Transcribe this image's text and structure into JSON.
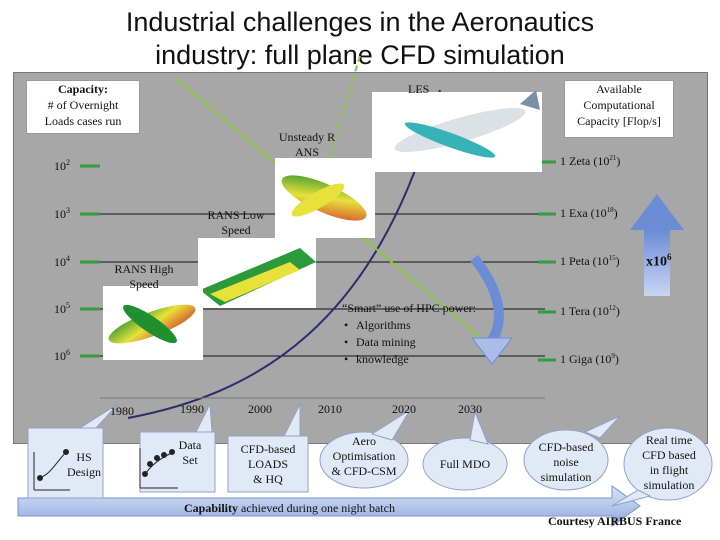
{
  "title_line1": "Industrial challenges in the Aeronautics",
  "title_line2": "industry: full plane CFD simulation",
  "capacity_box": {
    "line1": "Capacity:",
    "line2": "# of Overnight",
    "line3": "Loads cases run"
  },
  "available_box": {
    "line1": "Available",
    "line2": "Computational",
    "line3": "Capacity [Flop/s]"
  },
  "left_axis": [
    {
      "base": "10",
      "exp": "2"
    },
    {
      "base": "10",
      "exp": "3"
    },
    {
      "base": "10",
      "exp": "4"
    },
    {
      "base": "10",
      "exp": "5"
    },
    {
      "base": "10",
      "exp": "6"
    }
  ],
  "right_axis": [
    {
      "label": "1 Zeta  (10",
      "exp": "21",
      "close": ")"
    },
    {
      "label": "1 Exa (10",
      "exp": "18",
      "close": ")"
    },
    {
      "label": "1 Peta (10",
      "exp": "15",
      "close": ")"
    },
    {
      "label": "1 Tera (10",
      "exp": "12",
      "close": ")"
    },
    {
      "label": "1 Giga (10",
      "exp": "9",
      "close": ")"
    }
  ],
  "multiplier": "x10",
  "multiplier_exp": "6",
  "regimes": {
    "les": "LES",
    "unsteady_line1": "Unsteady R",
    "unsteady_line2": "ANS",
    "rans_low_line1": "RANS Low",
    "rans_low_line2": "Speed",
    "rans_high_line1": "RANS High",
    "rans_high_line2": "Speed"
  },
  "hpc": {
    "heading": "“Smart” use of HPC power:",
    "items": [
      "Algorithms",
      "Data mining",
      "knowledge"
    ]
  },
  "years": [
    "1980",
    "1990",
    "2000",
    "2010",
    "2020",
    "2030"
  ],
  "bubbles": {
    "hs_line1": "HS",
    "hs_line2": "Design",
    "dataset_line1": "Data",
    "dataset_line2": "Set",
    "cfd_loads_line1": "CFD-based",
    "cfd_loads_line2": "LOADS",
    "cfd_loads_line3": "& HQ",
    "aero_line1": "Aero",
    "aero_line2": "Optimisation",
    "aero_line3": "& CFD-CSM",
    "full_mdo": "Full MDO",
    "noise_line1": "CFD-based",
    "noise_line2": "noise",
    "noise_line3": "simulation",
    "realtime_line1": "Real time",
    "realtime_line2": "CFD based",
    "realtime_line3": "in flight",
    "realtime_line4": "simulation"
  },
  "capability_bold": "Capability",
  "capability_rest": " achieved during one night batch",
  "credit": "Courtesy AIRBUS France",
  "colors": {
    "panel": "#a7a7a7",
    "curve": "#2d2d6b",
    "les_line": "#8dc63f",
    "arrow": "#6b8dd6",
    "rule": "#4caf50"
  }
}
